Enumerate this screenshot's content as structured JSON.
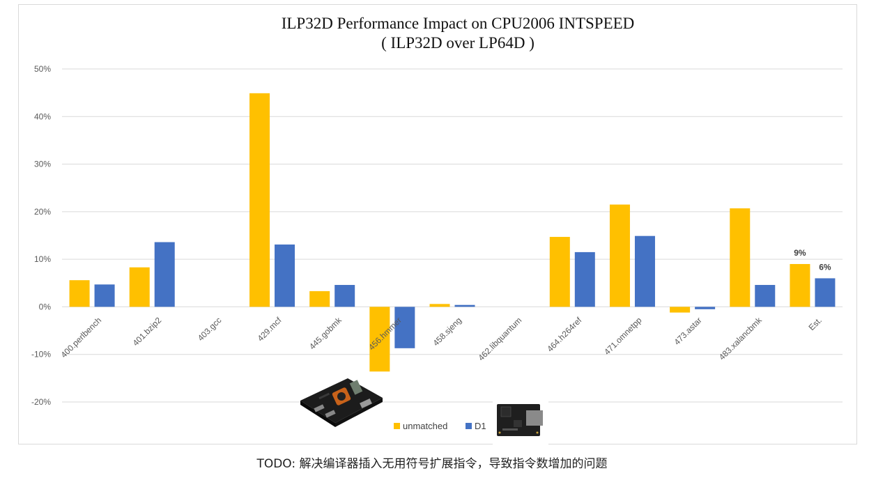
{
  "chart_data": {
    "type": "bar",
    "title": "ILP32D Performance Impact on CPU2006 INTSPEED",
    "subtitle": "( ILP32D over LP64D )",
    "xlabel": "",
    "ylabel": "",
    "ylim": [
      -20,
      50
    ],
    "yticks": [
      -20,
      -10,
      0,
      10,
      20,
      30,
      40,
      50
    ],
    "ytick_suffix": "%",
    "grid": true,
    "legend_position": "bottom",
    "categories": [
      "400.perlbench",
      "401.bzip2",
      "403.gcc",
      "429.mcf",
      "445.gobmk",
      "456.hmmer",
      "458.sjeng",
      "462.libquantum",
      "464.h264ref",
      "471.omnetpp",
      "473.astar",
      "483.xalancbmk",
      "Est."
    ],
    "series": [
      {
        "name": "unmatched",
        "color": "#FFC000",
        "values": [
          5.6,
          8.3,
          0,
          44.9,
          3.3,
          -13.6,
          0.6,
          0,
          14.7,
          21.5,
          -1.2,
          20.7,
          9
        ]
      },
      {
        "name": "D1",
        "color": "#4472C4",
        "values": [
          4.7,
          13.6,
          0,
          13.1,
          4.6,
          -8.7,
          0.4,
          0,
          11.5,
          14.9,
          -0.5,
          4.6,
          6
        ]
      }
    ],
    "data_labels": [
      {
        "series": 0,
        "index": 12,
        "text": "9%"
      },
      {
        "series": 1,
        "index": 12,
        "text": "6%"
      }
    ]
  },
  "images": {
    "unmatched_board": "unmatched-board-photo",
    "d1_board": "d1-board-photo"
  },
  "caption": "TODO:  解决编译器插入无用符号扩展指令，导致指令数增加的问题"
}
